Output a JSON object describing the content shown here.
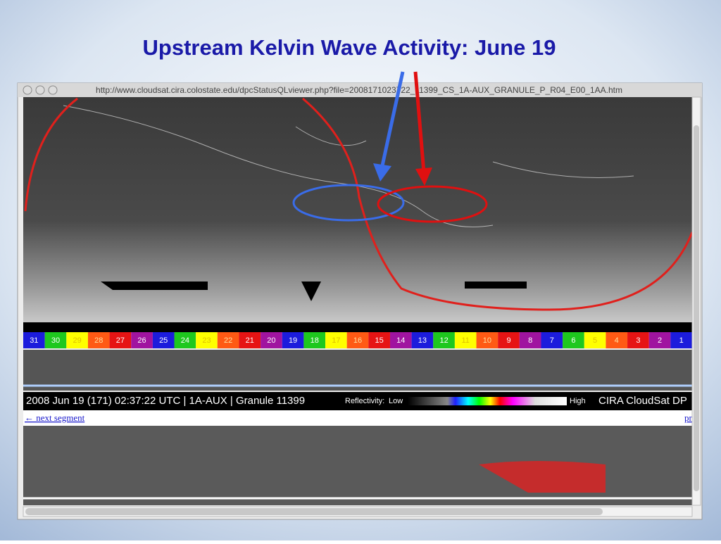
{
  "slide": {
    "title": "Upstream Kelvin Wave Activity: June 19"
  },
  "browser": {
    "url": "http://www.cloudsat.cira.colostate.edu/dpcStatusQLviewer.php?file=2008171023722_11399_CS_1A-AUX_GRANULE_P_R04_E00_1AA.htm"
  },
  "segments": [
    "31",
    "30",
    "29",
    "28",
    "27",
    "26",
    "25",
    "24",
    "23",
    "22",
    "21",
    "20",
    "19",
    "18",
    "17",
    "16",
    "15",
    "14",
    "13",
    "12",
    "11",
    "10",
    "9",
    "8",
    "7",
    "6",
    "5",
    "4",
    "3",
    "2",
    "1"
  ],
  "info_bar": {
    "granule": "2008 Jun 19 (171) 02:37:22 UTC | 1A-AUX | Granule 11399",
    "reflectivity": "Reflectivity:",
    "low": "Low",
    "high": "High",
    "credit": "CIRA CloudSat DP"
  },
  "links": {
    "next": "← next segment",
    "prev": "pr"
  }
}
